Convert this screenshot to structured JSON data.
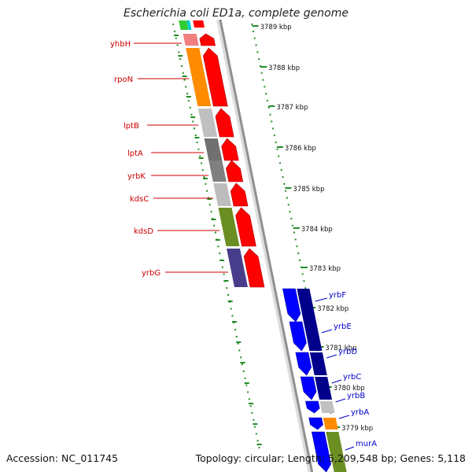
{
  "title": "Escherichia coli ED1a, complete genome",
  "accession": "Accession: NC_011745",
  "topology": "Topology: circular; Length: 5,209,548 bp; Genes: 5,118",
  "colors": {
    "forward_arrow": "#ff0000",
    "reverse_arrow": "#0000ff",
    "forward_label": "#cc0000",
    "reverse_label": "#0000cc",
    "tick": "#228b22",
    "backbone": "#909090"
  },
  "kbp_markers": [
    "3789 kbp",
    "3788 kbp",
    "3787 kbp",
    "3786 kbp",
    "3785 kbp",
    "3784 kbp",
    "3783 kbp",
    "3782 kbp",
    "3781 kbp",
    "3780 kbp",
    "3779 kbp"
  ],
  "forward_genes": [
    {
      "name": "yhbH",
      "color": "#f08080"
    },
    {
      "name": "rpoN",
      "color": "#ff8c00"
    },
    {
      "name": "lptB",
      "color": "#c0c0c0"
    },
    {
      "name": "lptA",
      "color": "#707070"
    },
    {
      "name": "yrbK",
      "color": "#808080"
    },
    {
      "name": "kdsC",
      "color": "#bdbdbd"
    },
    {
      "name": "kdsD",
      "color": "#6b8e23"
    },
    {
      "name": "yrbG",
      "color": "#483d8b"
    }
  ],
  "reverse_genes": [
    {
      "name": "yrbF",
      "color": "#00008b"
    },
    {
      "name": "yrbE",
      "color": "#00008b"
    },
    {
      "name": "yrbD",
      "color": "#00008b"
    },
    {
      "name": "yrbC",
      "color": "#00008b"
    },
    {
      "name": "yrbB",
      "color": "#c0c0c0"
    },
    {
      "name": "yrbA",
      "color": "#ff8c00"
    },
    {
      "name": "murA",
      "color": "#6b8e23"
    }
  ]
}
